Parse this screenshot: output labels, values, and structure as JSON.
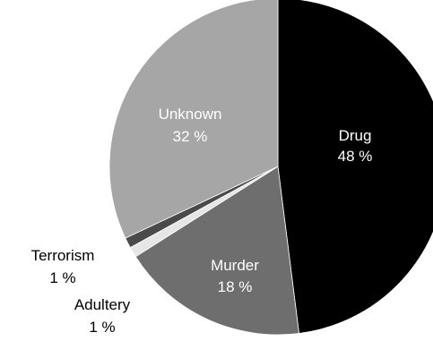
{
  "chart_data": {
    "type": "pie",
    "title": "",
    "slices": [
      {
        "label": "Drug",
        "value": 48,
        "value_text": "48 %",
        "color": "#000000"
      },
      {
        "label": "Murder",
        "value": 18,
        "value_text": "18 %",
        "color": "#6e6e6e"
      },
      {
        "label": "Adultery",
        "value": 1,
        "value_text": "1 %",
        "color": "#e6e6e6"
      },
      {
        "label": "Terrorism",
        "value": 1,
        "value_text": "1 %",
        "color": "#4a4a4a"
      },
      {
        "label": "Unknown",
        "value": 32,
        "value_text": "32 %",
        "color": "#a6a6a6"
      }
    ],
    "start_angle_deg": 0,
    "direction": "clockwise",
    "legend": "none"
  }
}
